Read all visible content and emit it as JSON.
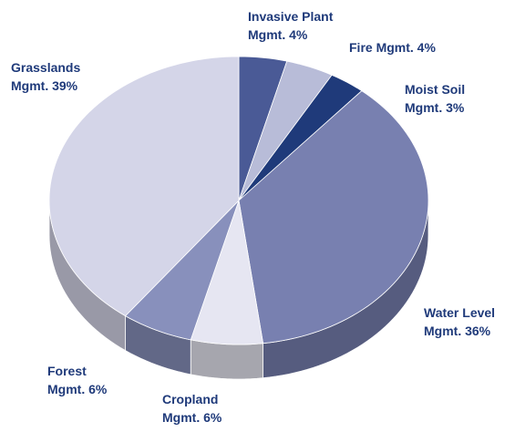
{
  "chart_data": {
    "type": "pie",
    "categories": [
      "Invasive Plant Mgmt.",
      "Fire Mgmt.",
      "Moist Soil Mgmt.",
      "Water Level Mgmt.",
      "Cropland Mgmt.",
      "Forest Mgmt.",
      "Grasslands Mgmt."
    ],
    "values": [
      4,
      4,
      3,
      36,
      6,
      6,
      39
    ],
    "value_labels": [
      "4%",
      "4%",
      "3%",
      "36%",
      "6%",
      "6%",
      "39%"
    ],
    "colors": [
      "#4a5a96",
      "#b8bcd8",
      "#1f3a7a",
      "#7880b0",
      "#e6e6f2",
      "#8890bc",
      "#d4d5e8"
    ]
  }
}
